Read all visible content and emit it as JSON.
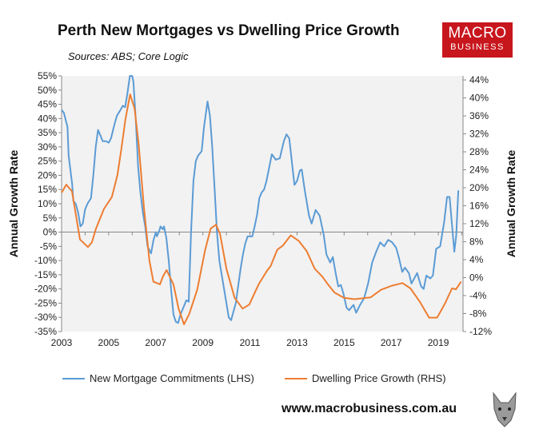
{
  "header": {
    "title": "Perth New Mortgages vs Dwelling Price Growth",
    "subtitle": "Sources: ABS; Core Logic"
  },
  "logo": {
    "line1": "MACRO",
    "line2": "BUSINESS",
    "color": "#c8161d"
  },
  "footer": {
    "url": "www.macrobusiness.com.au"
  },
  "chart_data": {
    "type": "line",
    "title": "Perth New Mortgages vs Dwelling Price Growth",
    "xlim": [
      2003,
      2020.05
    ],
    "x_ticks": [
      "2003",
      "2005",
      "2007",
      "2009",
      "2011",
      "2013",
      "2015",
      "2017",
      "2019"
    ],
    "left_axis": {
      "label": "Annual Growth Rate",
      "ylim": [
        -35,
        55
      ],
      "ticks": [
        "55%",
        "50%",
        "45%",
        "40%",
        "35%",
        "30%",
        "25%",
        "20%",
        "15%",
        "10%",
        "5%",
        "0%",
        "-5%",
        "-10%",
        "-15%",
        "-20%",
        "-25%",
        "-30%",
        "-35%"
      ]
    },
    "right_axis": {
      "label": "Annual Growth Rate",
      "ylim": [
        -12,
        44.9
      ],
      "ticks": [
        "44%",
        "40%",
        "36%",
        "32%",
        "28%",
        "24%",
        "20%",
        "16%",
        "12%",
        "8%",
        "4%",
        "0%",
        "-4%",
        "-8%",
        "-12%"
      ]
    },
    "grid": false,
    "legend_position": "bottom",
    "series": [
      {
        "name": "New Mortgage Commitments (LHS)",
        "axis": "left",
        "color": "#5b9bd5",
        "x": [
          2003.0,
          2003.1,
          2003.25,
          2003.3,
          2003.45,
          2003.5,
          2003.6,
          2003.7,
          2003.8,
          2003.9,
          2004.0,
          2004.1,
          2004.25,
          2004.35,
          2004.45,
          2004.55,
          2004.65,
          2004.75,
          2004.9,
          2005.0,
          2005.1,
          2005.25,
          2005.35,
          2005.5,
          2005.6,
          2005.7,
          2005.8,
          2005.9,
          2006.0,
          2006.05,
          2006.15,
          2006.25,
          2006.35,
          2006.45,
          2006.55,
          2006.65,
          2006.8,
          2006.9,
          2007.0,
          2007.05,
          2007.15,
          2007.2,
          2007.3,
          2007.35,
          2007.45,
          2007.55,
          2007.65,
          2007.75,
          2007.85,
          2007.95,
          2008.05,
          2008.2,
          2008.3,
          2008.4,
          2008.5,
          2008.6,
          2008.7,
          2008.8,
          2008.95,
          2009.05,
          2009.2,
          2009.3,
          2009.4,
          2009.5,
          2009.6,
          2009.7,
          2009.8,
          2009.9,
          2010.0,
          2010.1,
          2010.2,
          2010.3,
          2010.4,
          2010.5,
          2010.6,
          2010.7,
          2010.8,
          2010.9,
          2011.0,
          2011.1,
          2011.2,
          2011.3,
          2011.4,
          2011.5,
          2011.6,
          2011.7,
          2011.8,
          2011.93,
          2012.1,
          2012.27,
          2012.44,
          2012.55,
          2012.67,
          2012.89,
          2013.0,
          2013.12,
          2013.2,
          2013.34,
          2013.51,
          2013.62,
          2013.79,
          2013.96,
          2014.13,
          2014.25,
          2014.41,
          2014.52,
          2014.64,
          2014.75,
          2014.86,
          2014.98,
          2015.1,
          2015.21,
          2015.4,
          2015.51,
          2015.68,
          2015.85,
          2016.02,
          2016.19,
          2016.36,
          2016.53,
          2016.7,
          2016.87,
          2017.04,
          2017.21,
          2017.32,
          2017.47,
          2017.58,
          2017.75,
          2017.86,
          2018.1,
          2018.27,
          2018.38,
          2018.49,
          2018.66,
          2018.77,
          2018.91,
          2019.08,
          2019.25,
          2019.37,
          2019.48,
          2019.68,
          2019.76,
          2019.85
        ],
        "values": [
          43,
          42,
          37,
          27,
          17,
          11,
          10,
          7,
          2,
          3,
          8,
          10,
          12,
          20,
          30,
          36,
          34,
          32,
          32,
          31.5,
          33,
          38,
          41,
          43,
          44.5,
          44,
          49,
          55,
          57,
          53,
          40,
          23,
          14,
          7,
          2,
          -5,
          -7.5,
          -3,
          0,
          -1.5,
          0.5,
          2,
          1,
          2,
          -2,
          -10,
          -20,
          -29,
          -31.5,
          -32,
          -29,
          -26,
          -24,
          -24.5,
          0,
          18,
          25,
          27,
          28.5,
          37,
          46,
          41,
          30,
          15,
          0,
          -10,
          -15,
          -20,
          -25,
          -30,
          -31,
          -28,
          -25,
          -19,
          -13,
          -8,
          -4,
          -1.5,
          -1.5,
          -1.5,
          2,
          6,
          12,
          14,
          15,
          18,
          22,
          27.4,
          25.5,
          26,
          32,
          34.4,
          33,
          16.6,
          18,
          21.7,
          22,
          14.2,
          5.8,
          3,
          7.8,
          5.8,
          -0.8,
          -7.9,
          -10.7,
          -8.8,
          -14.4,
          -19.1,
          -18.6,
          -21.9,
          -26.6,
          -27.5,
          -25.6,
          -28.4,
          -25.6,
          -23.3,
          -18.1,
          -10.7,
          -6.9,
          -3.6,
          -5,
          -2.7,
          -3.6,
          -5.5,
          -8.8,
          -14,
          -12.5,
          -14.4,
          -18.1,
          -14.4,
          -19.1,
          -20,
          -15.3,
          -16.3,
          -15.3,
          -5.9,
          -5,
          3.5,
          12.4,
          12.4,
          -6.9,
          -1.2,
          14.7
        ]
      },
      {
        "name": "Dwelling Price Growth (RHS)",
        "axis": "right",
        "color": "#ed7d31",
        "x": [
          2003.0,
          2003.2,
          2003.44,
          2003.78,
          2004.12,
          2004.29,
          2004.46,
          2004.8,
          2005.14,
          2005.37,
          2005.54,
          2005.71,
          2005.91,
          2006.1,
          2006.27,
          2006.5,
          2006.73,
          2006.9,
          2007.18,
          2007.3,
          2007.46,
          2007.75,
          2007.97,
          2008.2,
          2008.42,
          2008.76,
          2009.1,
          2009.33,
          2009.56,
          2009.73,
          2010.0,
          2010.35,
          2010.69,
          2010.97,
          2011.37,
          2011.71,
          2011.88,
          2012.16,
          2012.39,
          2012.73,
          2013.07,
          2013.41,
          2013.75,
          2014.08,
          2014.31,
          2014.59,
          2014.99,
          2015.44,
          2016.12,
          2016.57,
          2017.03,
          2017.48,
          2017.82,
          2018.22,
          2018.61,
          2018.95,
          2019.29,
          2019.58,
          2019.75,
          2019.97
        ],
        "values": [
          18.9,
          20.7,
          19.2,
          8.5,
          6.8,
          7.9,
          10.9,
          15.3,
          18,
          22.8,
          28.7,
          35.2,
          40.8,
          37.6,
          29.9,
          15.6,
          3.8,
          -0.9,
          -1.5,
          0.2,
          1.7,
          -1.5,
          -6.9,
          -10.4,
          -8.1,
          -2.7,
          6.2,
          10.9,
          11.8,
          9.7,
          2,
          -4.5,
          -6.9,
          -6,
          -1.5,
          1.4,
          2.6,
          6.2,
          7.1,
          9.4,
          8.2,
          5.9,
          2,
          0.2,
          -1.5,
          -3.3,
          -4.5,
          -4.8,
          -4.4,
          -2.7,
          -1.8,
          -1.2,
          -2.4,
          -5.4,
          -8.9,
          -8.9,
          -5.7,
          -2.4,
          -2.6,
          -0.9
        ]
      }
    ]
  }
}
